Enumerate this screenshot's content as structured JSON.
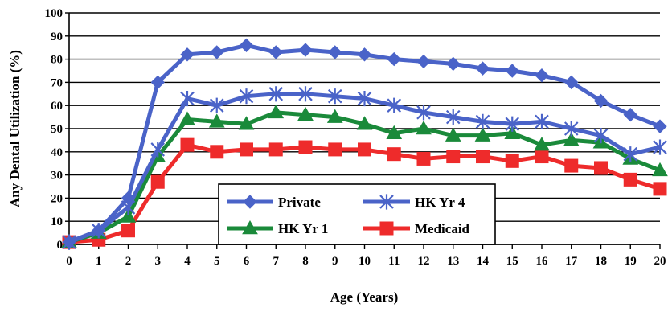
{
  "chart_data": {
    "type": "line",
    "title": "",
    "xlabel": "Age (Years)",
    "ylabel": "Any Dental Utilization (%)",
    "ylim": [
      0,
      100
    ],
    "yticks": [
      0,
      10,
      20,
      30,
      40,
      50,
      60,
      70,
      80,
      90,
      100
    ],
    "x": [
      0,
      1,
      2,
      3,
      4,
      5,
      6,
      7,
      8,
      9,
      10,
      11,
      12,
      13,
      14,
      15,
      16,
      17,
      18,
      19,
      20
    ],
    "grid": "horizontal",
    "legend_position": "bottom-center",
    "series": [
      {
        "name": "Private",
        "color": "#4a63c8",
        "marker": "diamond",
        "values": [
          1,
          6,
          20,
          70,
          82,
          83,
          86,
          83,
          84,
          83,
          82,
          80,
          79,
          78,
          76,
          75,
          73,
          70,
          62,
          56,
          51
        ]
      },
      {
        "name": "HK Yr 4",
        "color": "#4a63c8",
        "marker": "asterisk",
        "values": [
          1,
          6,
          16,
          41,
          63,
          60,
          64,
          65,
          65,
          64,
          63,
          60,
          57,
          55,
          53,
          52,
          53,
          50,
          47,
          39,
          42
        ]
      },
      {
        "name": "HK Yr 1",
        "color": "#1a8a3a",
        "marker": "triangle",
        "values": [
          1,
          5,
          12,
          38,
          54,
          53,
          52,
          57,
          56,
          55,
          52,
          48,
          50,
          47,
          47,
          48,
          43,
          45,
          44,
          37,
          32
        ]
      },
      {
        "name": "Medicaid",
        "color": "#ee2b2b",
        "marker": "square",
        "values": [
          1,
          2,
          6,
          27,
          43,
          40,
          41,
          41,
          42,
          41,
          41,
          39,
          37,
          38,
          38,
          36,
          38,
          34,
          33,
          28,
          24
        ]
      }
    ]
  }
}
